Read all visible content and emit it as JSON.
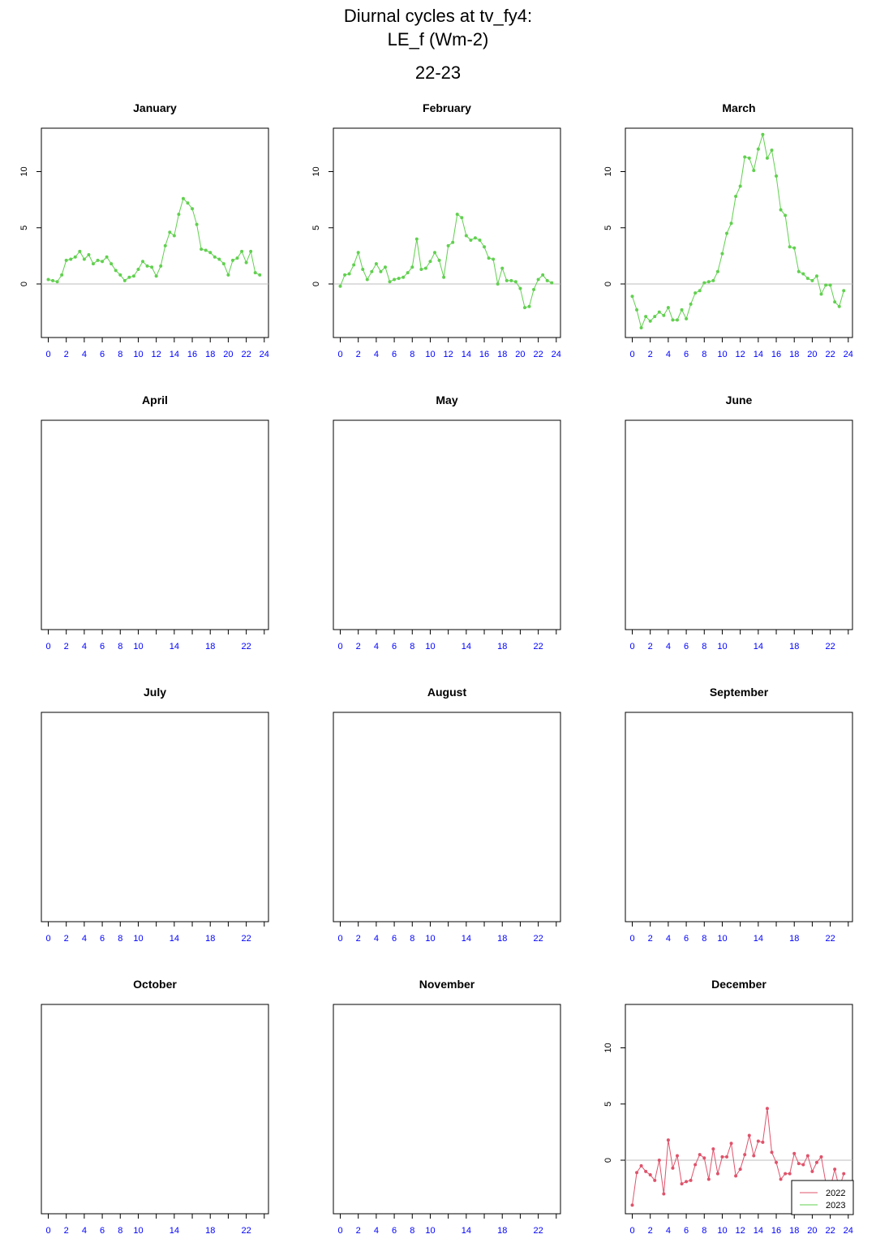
{
  "header": {
    "title_line1": "Diurnal cycles at tv_fy4:",
    "title_line2": "LE_f (Wm-2)",
    "subtitle": "22-23"
  },
  "colors": {
    "series_2022": "#DF536B",
    "series_2023": "#61D04F",
    "zero_line": "#BEBEBE",
    "x_tick_labels": "#0000FF",
    "axis": "#000000"
  },
  "chart_data": [
    {
      "type": "line",
      "title": "January",
      "ylim": [
        -4.6,
        13.4
      ],
      "xlim": [
        -0.6,
        24.2
      ],
      "y_ticks": [
        "0",
        "5",
        "10"
      ],
      "x_ticks": [
        "0",
        "2",
        "4",
        "6",
        "8",
        "10",
        "12",
        "14",
        "16",
        "18",
        "20",
        "22",
        "24"
      ],
      "series": [
        {
          "name": "2023",
          "color": "#61D04F",
          "x": [
            0,
            0.5,
            1,
            1.5,
            2,
            2.5,
            3,
            3.5,
            4,
            4.5,
            5,
            5.5,
            6,
            6.5,
            7,
            7.5,
            8,
            8.5,
            9,
            9.5,
            10,
            10.5,
            11,
            11.5,
            12,
            12.5,
            13,
            13.5,
            14,
            14.5,
            15,
            15.5,
            16,
            16.5,
            17,
            17.5,
            18,
            18.5,
            19,
            19.5,
            20,
            20.5,
            21,
            21.5,
            22,
            22.5,
            23,
            23.5
          ],
          "y": [
            0.4,
            0.3,
            0.2,
            0.8,
            2.1,
            2.2,
            2.4,
            2.9,
            2.2,
            2.6,
            1.8,
            2.1,
            2.0,
            2.4,
            1.8,
            1.2,
            0.8,
            0.3,
            0.6,
            0.7,
            1.3,
            2.0,
            1.6,
            1.5,
            0.7,
            1.6,
            3.4,
            4.6,
            4.3,
            6.2,
            7.6,
            7.2,
            6.7,
            5.3,
            3.1,
            3.0,
            2.8,
            2.4,
            2.2,
            1.8,
            0.8,
            2.1,
            2.3,
            2.9,
            1.9,
            2.9,
            1.0,
            0.8
          ]
        }
      ]
    },
    {
      "type": "line",
      "title": "February",
      "ylim": [
        -4.6,
        13.4
      ],
      "xlim": [
        -0.6,
        24.2
      ],
      "y_ticks": [
        "0",
        "5",
        "10"
      ],
      "x_ticks": [
        "0",
        "2",
        "4",
        "6",
        "8",
        "10",
        "12",
        "14",
        "16",
        "18",
        "20",
        "22",
        "24"
      ],
      "series": [
        {
          "name": "2023",
          "color": "#61D04F",
          "x": [
            0,
            0.5,
            1,
            1.5,
            2,
            2.5,
            3,
            3.5,
            4,
            4.5,
            5,
            5.5,
            6,
            6.5,
            7,
            7.5,
            8,
            8.5,
            9,
            9.5,
            10,
            10.5,
            11,
            11.5,
            12,
            12.5,
            13,
            13.5,
            14,
            14.5,
            15,
            15.5,
            16,
            16.5,
            17,
            17.5,
            18,
            18.5,
            19,
            19.5,
            20,
            20.5,
            21,
            21.5,
            22,
            22.5,
            23,
            23.5
          ],
          "y": [
            -0.2,
            0.8,
            0.9,
            1.7,
            2.8,
            1.3,
            0.4,
            1.1,
            1.8,
            1.1,
            1.5,
            0.2,
            0.4,
            0.5,
            0.6,
            1.0,
            1.5,
            4.0,
            1.3,
            1.4,
            2.0,
            2.8,
            2.1,
            0.6,
            3.4,
            3.7,
            6.2,
            5.9,
            4.3,
            3.9,
            4.1,
            3.9,
            3.3,
            2.3,
            2.2,
            0.0,
            1.4,
            0.3,
            0.3,
            0.2,
            -0.4,
            -2.1,
            -2.0,
            -0.5,
            0.4,
            0.8,
            0.3,
            0.1
          ]
        }
      ]
    },
    {
      "type": "line",
      "title": "March",
      "ylim": [
        -4.6,
        13.4
      ],
      "xlim": [
        -0.6,
        24.2
      ],
      "y_ticks": [
        "0",
        "5",
        "10"
      ],
      "x_ticks": [
        "0",
        "2",
        "4",
        "6",
        "8",
        "10",
        "12",
        "14",
        "16",
        "18",
        "20",
        "22",
        "24"
      ],
      "series": [
        {
          "name": "2023",
          "color": "#61D04F",
          "x": [
            0,
            0.5,
            1,
            1.5,
            2,
            2.5,
            3,
            3.5,
            4,
            4.5,
            5,
            5.5,
            6,
            6.5,
            7,
            7.5,
            8,
            8.5,
            9,
            9.5,
            10,
            10.5,
            11,
            11.5,
            12,
            12.5,
            13,
            13.5,
            14,
            14.5,
            15,
            15.5,
            16,
            16.5,
            17,
            17.5,
            18,
            18.5,
            19,
            19.5,
            20,
            20.5,
            21,
            21.5,
            22,
            22.5,
            23,
            23.5
          ],
          "y": [
            -1.1,
            -2.3,
            -3.9,
            -2.9,
            -3.3,
            -2.9,
            -2.5,
            -2.8,
            -2.1,
            -3.2,
            -3.2,
            -2.3,
            -3.1,
            -1.8,
            -0.8,
            -0.6,
            0.1,
            0.2,
            0.3,
            1.1,
            2.7,
            4.5,
            5.4,
            7.8,
            8.7,
            11.3,
            11.2,
            10.1,
            12.0,
            13.3,
            11.2,
            11.9,
            9.6,
            6.6,
            6.1,
            3.3,
            3.2,
            1.1,
            0.9,
            0.5,
            0.3,
            0.7,
            -0.9,
            -0.1,
            -0.1,
            -1.6,
            -2.0,
            -0.6
          ]
        }
      ]
    },
    {
      "type": "line",
      "title": "April",
      "x_ticks": [
        "0",
        "2",
        "4",
        "6",
        "8",
        "10",
        "14",
        "18",
        "22"
      ],
      "series": []
    },
    {
      "type": "line",
      "title": "May",
      "x_ticks": [
        "0",
        "2",
        "4",
        "6",
        "8",
        "10",
        "14",
        "18",
        "22"
      ],
      "series": []
    },
    {
      "type": "line",
      "title": "June",
      "x_ticks": [
        "0",
        "2",
        "4",
        "6",
        "8",
        "10",
        "14",
        "18",
        "22"
      ],
      "series": []
    },
    {
      "type": "line",
      "title": "July",
      "x_ticks": [
        "0",
        "2",
        "4",
        "6",
        "8",
        "10",
        "14",
        "18",
        "22"
      ],
      "series": []
    },
    {
      "type": "line",
      "title": "August",
      "x_ticks": [
        "0",
        "2",
        "4",
        "6",
        "8",
        "10",
        "14",
        "18",
        "22"
      ],
      "series": []
    },
    {
      "type": "line",
      "title": "September",
      "x_ticks": [
        "0",
        "2",
        "4",
        "6",
        "8",
        "10",
        "14",
        "18",
        "22"
      ],
      "series": []
    },
    {
      "type": "line",
      "title": "October",
      "x_ticks": [
        "0",
        "2",
        "4",
        "6",
        "8",
        "10",
        "14",
        "18",
        "22"
      ],
      "series": []
    },
    {
      "type": "line",
      "title": "November",
      "x_ticks": [
        "0",
        "2",
        "4",
        "6",
        "8",
        "10",
        "14",
        "18",
        "22"
      ],
      "series": []
    },
    {
      "type": "line",
      "title": "December",
      "ylim": [
        -4.6,
        13.4
      ],
      "xlim": [
        -0.6,
        24.2
      ],
      "y_ticks": [
        "0",
        "5",
        "10"
      ],
      "x_ticks": [
        "0",
        "2",
        "4",
        "6",
        "8",
        "10",
        "12",
        "14",
        "16",
        "18",
        "20",
        "22",
        "24"
      ],
      "legend": {
        "position": "bottom-right",
        "entries": [
          {
            "label": "2022",
            "color": "#DF536B"
          },
          {
            "label": "2023",
            "color": "#61D04F"
          }
        ]
      },
      "series": [
        {
          "name": "2022",
          "color": "#DF536B",
          "x": [
            0,
            0.5,
            1,
            1.5,
            2,
            2.5,
            3,
            3.5,
            4,
            4.5,
            5,
            5.5,
            6,
            6.5,
            7,
            7.5,
            8,
            8.5,
            9,
            9.5,
            10,
            10.5,
            11,
            11.5,
            12,
            12.5,
            13,
            13.5,
            14,
            14.5,
            15,
            15.5,
            16,
            16.5,
            17,
            17.5,
            18,
            18.5,
            19,
            19.5,
            20,
            20.5,
            21,
            21.5,
            22,
            22.5,
            23,
            23.5
          ],
          "y": [
            -4.0,
            -1.1,
            -0.5,
            -1.0,
            -1.3,
            -1.8,
            0.0,
            -3.0,
            1.8,
            -0.7,
            0.4,
            -2.1,
            -1.9,
            -1.8,
            -0.4,
            0.5,
            0.2,
            -1.7,
            1.0,
            -1.2,
            0.3,
            0.3,
            1.5,
            -1.4,
            -0.8,
            0.5,
            2.2,
            0.4,
            1.7,
            1.6,
            4.6,
            0.7,
            -0.2,
            -1.7,
            -1.2,
            -1.2,
            0.6,
            -0.3,
            -0.4,
            0.4,
            -1.0,
            -0.2,
            0.3,
            -2.0,
            -2.5,
            -0.8,
            -2.5,
            -1.2
          ]
        }
      ]
    }
  ]
}
